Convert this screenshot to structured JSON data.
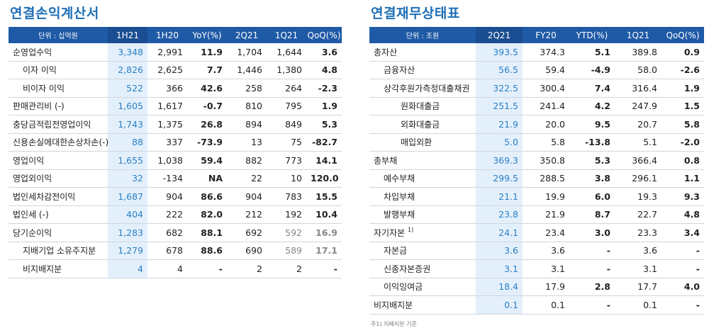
{
  "income": {
    "title": "연결손익계산서",
    "headers": [
      "단위 : 십억원",
      "1H21",
      "1H20",
      "YoY(%)",
      "2Q21",
      "1Q21",
      "QoQ(%)"
    ],
    "rows": [
      {
        "label": "순영업수익",
        "indent": 0,
        "values": [
          "3,348",
          "2,991",
          "11.9",
          "1,704",
          "1,644",
          "3.6"
        ]
      },
      {
        "label": "이자 이익",
        "indent": 1,
        "values": [
          "2,826",
          "2,625",
          "7.7",
          "1,446",
          "1,380",
          "4.8"
        ]
      },
      {
        "label": "비이자 이익",
        "indent": 1,
        "values": [
          "522",
          "366",
          "42.6",
          "258",
          "264",
          "-2.3"
        ]
      },
      {
        "label": "판매관리비 (-)",
        "indent": 0,
        "values": [
          "1,605",
          "1,617",
          "-0.7",
          "810",
          "795",
          "1.9"
        ]
      },
      {
        "label": "충당금적립전영업이익",
        "indent": 0,
        "values": [
          "1,743",
          "1,375",
          "26.8",
          "894",
          "849",
          "5.3"
        ]
      },
      {
        "label": "신용손실에대한손상차손(-)",
        "indent": 0,
        "values": [
          "88",
          "337",
          "-73.9",
          "13",
          "75",
          "-82.7"
        ]
      },
      {
        "label": "영업이익",
        "indent": 0,
        "values": [
          "1,655",
          "1,038",
          "59.4",
          "882",
          "773",
          "14.1"
        ]
      },
      {
        "label": "영업외이익",
        "indent": 0,
        "values": [
          "32",
          "-134",
          "NA",
          "22",
          "10",
          "120.0"
        ]
      },
      {
        "label": "법인세차감전이익",
        "indent": 0,
        "values": [
          "1,687",
          "904",
          "86.6",
          "904",
          "783",
          "15.5"
        ]
      },
      {
        "label": "법인세 (-)",
        "indent": 0,
        "values": [
          "404",
          "222",
          "82.0",
          "212",
          "192",
          "10.4"
        ]
      },
      {
        "label": "당기순이익",
        "indent": 0,
        "values": [
          "1,283",
          "682",
          "88.1",
          "692",
          "592",
          "16.9"
        ]
      },
      {
        "label": "지배기업 소유주지분",
        "indent": 1,
        "values": [
          "1,279",
          "678",
          "88.6",
          "690",
          "589",
          "17.1"
        ]
      },
      {
        "label": "비지배지분",
        "indent": 1,
        "values": [
          "4",
          "4",
          "-",
          "2",
          "2",
          "-"
        ]
      }
    ]
  },
  "balance": {
    "title": "연결재무상태표",
    "headers": [
      "단위 : 조원",
      "2Q21",
      "FY20",
      "YTD(%)",
      "1Q21",
      "QoQ(%)"
    ],
    "rows": [
      {
        "label": "총자산",
        "indent": 0,
        "values": [
          "393.5",
          "374.3",
          "5.1",
          "389.8",
          "0.9"
        ]
      },
      {
        "label": "금융자산",
        "indent": 1,
        "values": [
          "56.5",
          "59.4",
          "-4.9",
          "58.0",
          "-2.6"
        ]
      },
      {
        "label": "상각후원가측정대출채권",
        "indent": 1,
        "values": [
          "322.5",
          "300.4",
          "7.4",
          "316.4",
          "1.9"
        ]
      },
      {
        "label": "원화대출금",
        "indent": 2,
        "values": [
          "251.5",
          "241.4",
          "4.2",
          "247.9",
          "1.5"
        ]
      },
      {
        "label": "외화대출금",
        "indent": 2,
        "values": [
          "21.9",
          "20.0",
          "9.5",
          "20.7",
          "5.8"
        ]
      },
      {
        "label": "매입외환",
        "indent": 2,
        "values": [
          "5.0",
          "5.8",
          "-13.8",
          "5.1",
          "-2.0"
        ]
      },
      {
        "label": "총부채",
        "indent": 0,
        "values": [
          "369.3",
          "350.8",
          "5.3",
          "366.4",
          "0.8"
        ]
      },
      {
        "label": "예수부채",
        "indent": 1,
        "values": [
          "299.5",
          "288.5",
          "3.8",
          "296.1",
          "1.1"
        ]
      },
      {
        "label": "차입부채",
        "indent": 1,
        "values": [
          "21.1",
          "19.9",
          "6.0",
          "19.3",
          "9.3"
        ]
      },
      {
        "label": "발행부채",
        "indent": 1,
        "values": [
          "23.8",
          "21.9",
          "8.7",
          "22.7",
          "4.8"
        ]
      },
      {
        "label": "자기자본",
        "indent": 0,
        "sup": "1)",
        "values": [
          "24.1",
          "23.4",
          "3.0",
          "23.3",
          "3.4"
        ]
      },
      {
        "label": "자본금",
        "indent": 1,
        "values": [
          "3.6",
          "3.6",
          "-",
          "3.6",
          "-"
        ]
      },
      {
        "label": "신종자본증권",
        "indent": 1,
        "values": [
          "3.1",
          "3.1",
          "-",
          "3.1",
          "-"
        ]
      },
      {
        "label": "이익잉여금",
        "indent": 1,
        "values": [
          "18.4",
          "17.9",
          "2.8",
          "17.7",
          "4.0"
        ]
      },
      {
        "label": "비지배지분",
        "indent": 0,
        "values": [
          "0.1",
          "0.1",
          "-",
          "0.1",
          "-"
        ]
      }
    ],
    "footnote": "주1) 지배지분 기준"
  }
}
